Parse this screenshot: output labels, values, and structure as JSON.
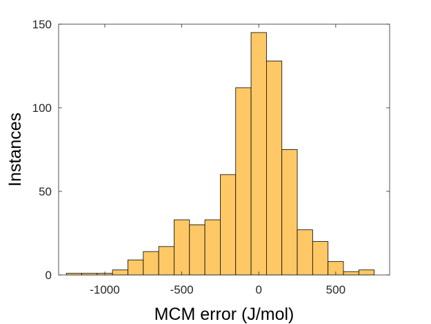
{
  "chart_data": {
    "type": "bar",
    "title": "",
    "xlabel": "MCM error (J/mol)",
    "ylabel": "Instances",
    "xlim": [
      -1300,
      850
    ],
    "ylim": [
      0,
      150
    ],
    "xticks": [
      -1000,
      -500,
      0,
      500
    ],
    "xtick_labels": [
      "-1000",
      "-500",
      "0",
      "500"
    ],
    "yticks": [
      0,
      50,
      100,
      150
    ],
    "ytick_labels": [
      "0",
      "50",
      "100",
      "150"
    ],
    "bin_width": 100,
    "bin_edges": [
      -1250,
      -1150,
      -1050,
      -950,
      -850,
      -750,
      -650,
      -550,
      -450,
      -350,
      -250,
      -150,
      -50,
      50,
      150,
      250,
      350,
      450,
      550,
      650,
      750
    ],
    "values": [
      1,
      1,
      1,
      3,
      9,
      14,
      17,
      33,
      30,
      33,
      60,
      112,
      145,
      128,
      75,
      27,
      20,
      8,
      2,
      3
    ],
    "grid": false,
    "legend": "none",
    "bar_color": "#FFC866",
    "edge_color": "#000000"
  }
}
